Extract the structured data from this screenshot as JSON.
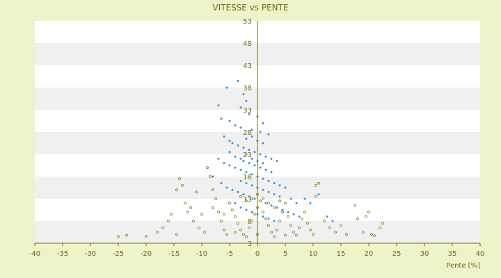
{
  "chart_data": {
    "type": "scatter",
    "title": "VITESSE vs PENTE",
    "xlabel": "Pente [%]",
    "ylabel": "",
    "xlim": [
      -40,
      40
    ],
    "ylim": [
      3,
      53
    ],
    "x_ticks": [
      "-40",
      "-35",
      "-30",
      "-25",
      "-20",
      "-15",
      "-10",
      "-5",
      "0",
      "5",
      "10",
      "15",
      "20",
      "25",
      "30",
      "35",
      "40"
    ],
    "y_ticks": [
      "3",
      "8",
      "13",
      "18",
      "23",
      "28",
      "33",
      "38",
      "43",
      "48",
      "53"
    ],
    "grid": "alternating horizontal bands",
    "legend": "none",
    "series": [
      {
        "color": "#3d8fd6",
        "points": [
          [
            -5.5,
            38.0
          ],
          [
            -3.5,
            39.5
          ],
          [
            -2.5,
            36.5
          ],
          [
            -2.0,
            35.0
          ],
          [
            -3.0,
            33.5
          ],
          [
            -1.5,
            32.0
          ],
          [
            0.0,
            31.5
          ],
          [
            1.0,
            30.0
          ],
          [
            -7.0,
            34.0
          ],
          [
            -6.5,
            31.0
          ],
          [
            -5.0,
            30.5
          ],
          [
            -4.0,
            29.5
          ],
          [
            -3.0,
            29.0
          ],
          [
            -1.0,
            28.5
          ],
          [
            0.5,
            28.0
          ],
          [
            2.0,
            27.5
          ],
          [
            -6.0,
            27.0
          ],
          [
            -5.0,
            26.0
          ],
          [
            -4.5,
            25.5
          ],
          [
            -3.5,
            25.0
          ],
          [
            -2.5,
            24.5
          ],
          [
            -1.5,
            24.0
          ],
          [
            -0.5,
            23.5
          ],
          [
            0.5,
            23.0
          ],
          [
            1.5,
            22.5
          ],
          [
            2.5,
            22.0
          ],
          [
            3.5,
            21.5
          ],
          [
            -7.0,
            22.0
          ],
          [
            -6.0,
            21.0
          ],
          [
            -5.0,
            20.5
          ],
          [
            -4.0,
            20.0
          ],
          [
            -3.0,
            19.5
          ],
          [
            -2.0,
            19.0
          ],
          [
            -1.0,
            18.5
          ],
          [
            0.0,
            18.0
          ],
          [
            1.0,
            17.5
          ],
          [
            2.0,
            17.0
          ],
          [
            3.0,
            16.5
          ],
          [
            4.0,
            16.0
          ],
          [
            5.0,
            15.5
          ],
          [
            -8.0,
            18.0
          ],
          [
            -6.5,
            16.5
          ],
          [
            -5.5,
            15.5
          ],
          [
            -4.5,
            15.0
          ],
          [
            -3.5,
            14.5
          ],
          [
            -2.5,
            14.0
          ],
          [
            -1.5,
            13.5
          ],
          [
            -0.5,
            13.0
          ],
          [
            0.5,
            12.5
          ],
          [
            1.5,
            12.0
          ],
          [
            2.5,
            11.5
          ],
          [
            3.5,
            11.0
          ],
          [
            4.5,
            10.5
          ],
          [
            5.5,
            10.0
          ],
          [
            6.5,
            9.5
          ],
          [
            7.5,
            9.0
          ],
          [
            -4.0,
            12.0
          ],
          [
            -3.0,
            11.0
          ],
          [
            -2.0,
            10.5
          ],
          [
            -1.0,
            10.0
          ],
          [
            0.0,
            9.5
          ],
          [
            1.0,
            9.0
          ],
          [
            2.0,
            8.5
          ],
          [
            3.0,
            8.0
          ],
          [
            8.5,
            13.0
          ],
          [
            9.5,
            12.0
          ],
          [
            11.0,
            14.0
          ],
          [
            12.5,
            9.0
          ],
          [
            13.5,
            8.0
          ],
          [
            -2.0,
            26.5
          ],
          [
            -1.0,
            27.0
          ],
          [
            0.0,
            26.0
          ],
          [
            1.0,
            25.5
          ],
          [
            -2.5,
            21.5
          ],
          [
            -1.5,
            21.0
          ],
          [
            -0.5,
            20.5
          ],
          [
            0.5,
            20.0
          ],
          [
            1.5,
            19.5
          ],
          [
            2.5,
            19.0
          ],
          [
            -3.0,
            17.0
          ],
          [
            -2.0,
            16.5
          ],
          [
            -1.0,
            16.0
          ],
          [
            0.0,
            15.5
          ],
          [
            1.0,
            15.0
          ],
          [
            2.0,
            14.5
          ],
          [
            3.0,
            14.0
          ],
          [
            4.0,
            13.5
          ],
          [
            6.0,
            13.0
          ],
          [
            7.0,
            12.0
          ],
          [
            -5.0,
            23.5
          ],
          [
            -4.0,
            22.5
          ],
          [
            -3.0,
            22.0
          ],
          [
            -2.0,
            23.0
          ],
          [
            -1.0,
            22.0
          ],
          [
            0.0,
            21.5
          ],
          [
            1.0,
            21.0
          ]
        ]
      },
      {
        "color": "#7a7a12",
        "points": [
          [
            -25.0,
            4.5
          ],
          [
            -23.5,
            4.8
          ],
          [
            -20.0,
            4.6
          ],
          [
            -18.0,
            5.5
          ],
          [
            -17.0,
            6.5
          ],
          [
            -16.0,
            8.0
          ],
          [
            -15.5,
            9.5
          ],
          [
            -14.5,
            5.0
          ],
          [
            -14.0,
            17.5
          ],
          [
            -13.5,
            16.0
          ],
          [
            -14.5,
            15.0
          ],
          [
            -13.0,
            12.0
          ],
          [
            -12.5,
            10.0
          ],
          [
            -11.5,
            8.0
          ],
          [
            -10.5,
            6.5
          ],
          [
            -9.5,
            5.5
          ],
          [
            -9.0,
            20.0
          ],
          [
            -8.5,
            18.0
          ],
          [
            -8.0,
            15.0
          ],
          [
            -7.5,
            13.0
          ],
          [
            -7.0,
            10.0
          ],
          [
            -6.5,
            8.0
          ],
          [
            -6.0,
            6.0
          ],
          [
            -5.5,
            5.0
          ],
          [
            -5.0,
            12.0
          ],
          [
            -4.5,
            10.5
          ],
          [
            -4.0,
            9.0
          ],
          [
            -3.5,
            7.5
          ],
          [
            -3.0,
            6.0
          ],
          [
            -2.5,
            5.0
          ],
          [
            -2.0,
            4.5
          ],
          [
            -1.5,
            6.5
          ],
          [
            -1.0,
            8.0
          ],
          [
            -0.5,
            9.5
          ],
          [
            0.0,
            11.0
          ],
          [
            0.5,
            12.5
          ],
          [
            1.0,
            10.0
          ],
          [
            1.5,
            8.5
          ],
          [
            2.0,
            7.0
          ],
          [
            2.5,
            5.5
          ],
          [
            3.0,
            4.5
          ],
          [
            3.5,
            6.0
          ],
          [
            4.0,
            8.0
          ],
          [
            4.5,
            10.0
          ],
          [
            5.0,
            12.0
          ],
          [
            5.5,
            9.0
          ],
          [
            6.0,
            7.0
          ],
          [
            6.5,
            5.5
          ],
          [
            7.0,
            4.8
          ],
          [
            7.5,
            6.5
          ],
          [
            8.0,
            8.5
          ],
          [
            8.5,
            10.0
          ],
          [
            9.0,
            7.5
          ],
          [
            9.5,
            6.0
          ],
          [
            10.0,
            5.0
          ],
          [
            10.5,
            13.5
          ],
          [
            11.0,
            16.5
          ],
          [
            10.5,
            16.0
          ],
          [
            12.0,
            8.0
          ],
          [
            13.0,
            6.5
          ],
          [
            14.0,
            5.5
          ],
          [
            15.0,
            7.0
          ],
          [
            16.0,
            5.0
          ],
          [
            17.5,
            11.5
          ],
          [
            18.0,
            8.5
          ],
          [
            19.0,
            5.5
          ],
          [
            19.5,
            9.0
          ],
          [
            20.0,
            10.0
          ],
          [
            20.5,
            5.0
          ],
          [
            21.0,
            4.7
          ],
          [
            22.0,
            6.5
          ],
          [
            22.5,
            7.5
          ],
          [
            -3.0,
            13.5
          ],
          [
            -2.0,
            12.5
          ],
          [
            -1.0,
            13.0
          ],
          [
            0.0,
            14.0
          ],
          [
            1.0,
            13.0
          ],
          [
            2.0,
            12.0
          ],
          [
            3.0,
            11.0
          ],
          [
            4.0,
            12.5
          ],
          [
            -11.0,
            14.5
          ],
          [
            -12.0,
            11.0
          ],
          [
            -10.0,
            9.5
          ],
          [
            -8.0,
            11.0
          ],
          [
            -6.0,
            9.5
          ],
          [
            -4.0,
            5.5
          ],
          [
            0.0,
            5.0
          ],
          [
            5.0,
            4.8
          ]
        ]
      }
    ]
  }
}
